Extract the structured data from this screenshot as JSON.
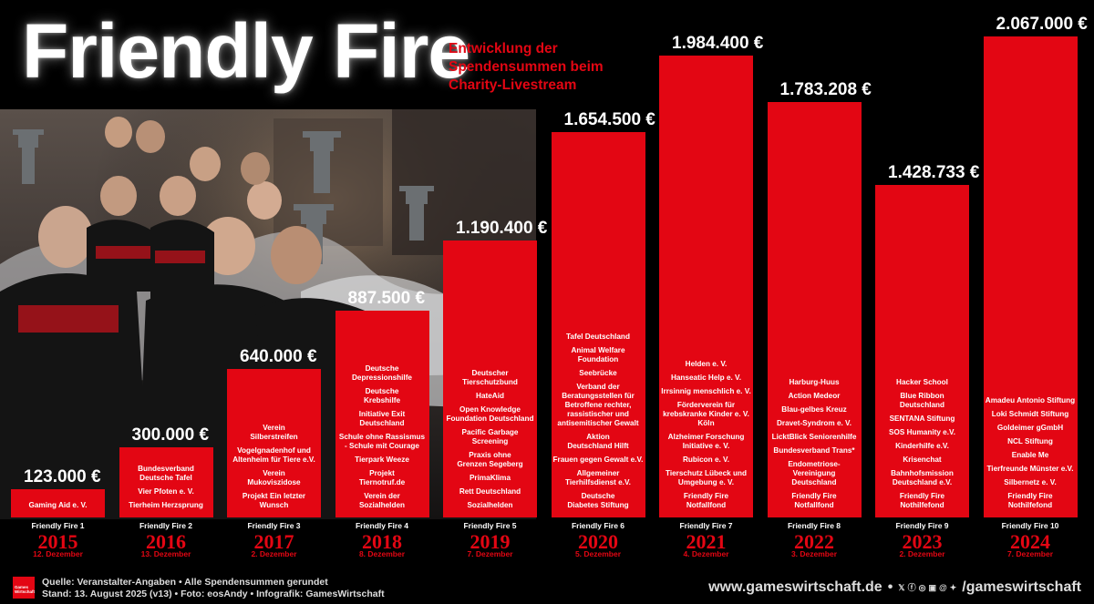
{
  "header": {
    "title": "Friendly Fire",
    "subtitle_lines": [
      "Entwicklung der",
      "Spendensummen beim",
      "Charity-Livestream"
    ]
  },
  "colors": {
    "accent": "#e30613",
    "background": "#000000"
  },
  "chart_data": {
    "type": "bar",
    "title": "Friendly Fire",
    "subtitle": "Entwicklung der Spendensummen beim Charity-Livestream",
    "xlabel": "",
    "ylabel": "",
    "ylim": [
      0,
      2067000
    ],
    "grid": false,
    "categories": [
      "2015",
      "2016",
      "2017",
      "2018",
      "2019",
      "2020",
      "2021",
      "2022",
      "2023",
      "2024"
    ],
    "values": [
      123000,
      300000,
      640000,
      887500,
      1190400,
      1654500,
      1984400,
      1783208,
      1428733,
      2067000
    ],
    "value_labels": [
      "123.000 €",
      "300.000 €",
      "640.000 €",
      "887.500 €",
      "1.190.400 €",
      "1.654.500 €",
      "1.984.400 €",
      "1.783.208 €",
      "1.428.733 €",
      "2.067.000 €"
    ],
    "events": [
      "Friendly Fire 1",
      "Friendly Fire 2",
      "Friendly Fire 3",
      "Friendly Fire 4",
      "Friendly Fire 5",
      "Friendly Fire 6",
      "Friendly Fire 7",
      "Friendly Fire 8",
      "Friendly Fire 9",
      "Friendly Fire 10"
    ],
    "dates": [
      "12. Dezember",
      "13. Dezember",
      "2. Dezember",
      "8. Dezember",
      "7. Dezember",
      "5. Dezember",
      "4. Dezember",
      "3. Dezember",
      "2. Dezember",
      "7. Dezember"
    ],
    "organizations": [
      [
        "Gaming Aid e. V."
      ],
      [
        "Bundesverband\nDeutsche Tafel",
        "Vier Pfoten e. V.",
        "Tierheim Herzsprung"
      ],
      [
        "Verein\nSilberstreifen",
        "Vogelgnadenhof und\nAltenheim für Tiere e.V.",
        "Verein\nMukoviszidose",
        "Projekt Ein letzter\nWunsch"
      ],
      [
        "Deutsche\nDepressionshilfe",
        "Deutsche\nKrebshilfe",
        "Initiative Exit\nDeutschland",
        "Schule ohne Rassismus\n- Schule mit Courage",
        "Tierpark Weeze",
        "Projekt\nTiernotruf.de",
        "Verein der\nSozialhelden"
      ],
      [
        "Deutscher\nTierschutzbund",
        "HateAid",
        "Open Knowledge\nFoundation Deutschland",
        "Pacific Garbage\nScreening",
        "Praxis ohne\nGrenzen Segeberg",
        "PrimaKlima",
        "Rett Deutschland",
        "Sozialhelden"
      ],
      [
        "Tafel Deutschland",
        "Animal Welfare\nFoundation",
        "Seebrücke",
        "Verband der\nBeratungsstellen für\nBetroffene rechter,\nrassistischer und\nantisemitischer Gewalt",
        "Aktion\nDeutschland Hilft",
        "Frauen gegen Gewalt e.V.",
        "Allgemeiner\nTierhilfsdienst e.V.",
        "Deutsche\nDiabetes Stiftung"
      ],
      [
        "Helden e. V.",
        "Hanseatic Help e. V.",
        "Irrsinnig menschlich e. V.",
        "Förderverein für\nkrebskranke Kinder e. V.\nKöln",
        "Alzheimer Forschung\nInitiative e. V.",
        "Rubicon e. V.",
        "Tierschutz Lübeck und\nUmgebung e. V.",
        "Friendly Fire\nNotfallfond"
      ],
      [
        "Harburg-Huus",
        "Action Medeor",
        "Blau-gelbes Kreuz",
        "Dravet-Syndrom e. V.",
        "LicktBlick Seniorenhilfe",
        "Bundesverband Trans*",
        "Endometriose-\nVereinigung\nDeutschland",
        "Friendly Fire\nNotfallfond"
      ],
      [
        "Hacker School",
        "Blue Ribbon Deutschland",
        "SENTANA Stiftung",
        "SOS Humanity e.V.",
        "Kinderhilfe e.V.",
        "Krisenchat",
        "Bahnhofsmission\nDeutschland e.V.",
        "Friendly Fire Nothilfefond"
      ],
      [
        "Amadeu Antonio Stiftung",
        "Loki Schmidt Stiftung",
        "Goldeimer gGmbH",
        "NCL Stiftung",
        "Enable Me",
        "Tierfreunde Münster e.V.",
        "Silbernetz e. V.",
        "Friendly Fire Nothilfefond"
      ]
    ]
  },
  "footer": {
    "logo_text": "Games Wirtschaft",
    "source_line": "Quelle: Veranstalter-Angaben • Alle Spendensummen gerundet",
    "status_line": "Stand: 13. August 2025 (v13) • Foto: eosAndy • Infografik: GamesWirtschaft",
    "website": "www.gameswirtschaft.de",
    "separator": "•",
    "social_icons": [
      "x-icon",
      "facebook-icon",
      "instagram-icon",
      "linkedin-icon",
      "threads-icon",
      "bluesky-icon"
    ],
    "handle": "/gameswirtschaft"
  }
}
